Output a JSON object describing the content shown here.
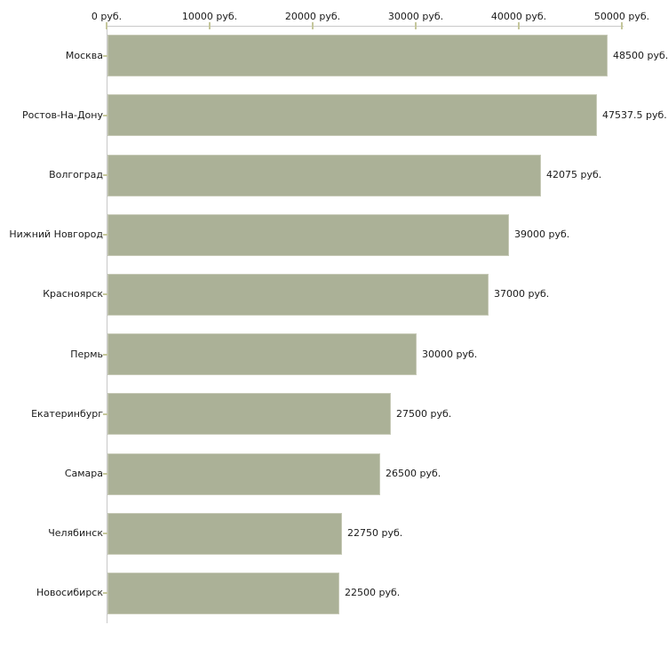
{
  "chart_data": {
    "type": "bar",
    "orientation": "horizontal",
    "title": "",
    "categories": [
      "Москва",
      "Ростов-На-Дону",
      "Волгоград",
      "Нижний Новгород",
      "Красноярск",
      "Пермь",
      "Екатеринбург",
      "Самара",
      "Челябинск",
      "Новосибирск"
    ],
    "values": [
      48500,
      47537.5,
      42075,
      39000,
      37000,
      30000,
      27500,
      26500,
      22750,
      22500
    ],
    "value_labels": [
      "48500 руб.",
      "47537.5 руб.",
      "42075 руб.",
      "39000 руб.",
      "37000 руб.",
      "30000 руб.",
      "27500 руб.",
      "26500 руб.",
      "22750 руб.",
      "22500 руб."
    ],
    "unit": "руб.",
    "x_axis": {
      "position": "top",
      "range": [
        0,
        50000
      ],
      "tick_values": [
        0,
        10000,
        20000,
        30000,
        40000,
        50000
      ],
      "tick_labels": [
        "0 руб.",
        "10000 руб.",
        "20000 руб.",
        "30000 руб.",
        "40000 руб.",
        "50000 руб."
      ]
    },
    "grid": false,
    "legend": false,
    "colors": {
      "bar_fill": "#abb197",
      "bar_border": "#c6c9b6",
      "axis_line": "#c9c9c9",
      "tick_mark": "#c5c79c",
      "category_tick": "#c5c79c",
      "text": "#1a1a1a",
      "background": "#ffffff"
    }
  }
}
